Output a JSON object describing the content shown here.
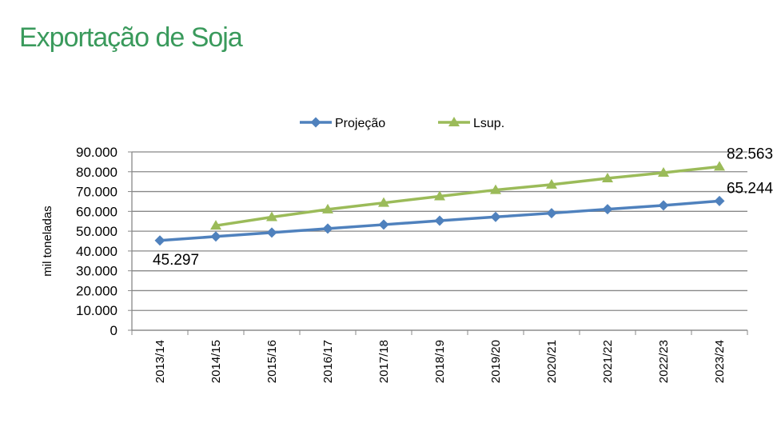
{
  "title": "Exportação de Soja",
  "chart_data": {
    "type": "line",
    "title": "",
    "xlabel": "",
    "ylabel": "mil toneladas",
    "ylim": [
      0,
      90000
    ],
    "yticks": [
      {
        "value": 0,
        "label": "0"
      },
      {
        "value": 10000,
        "label": "10.000"
      },
      {
        "value": 20000,
        "label": "20.000"
      },
      {
        "value": 30000,
        "label": "30.000"
      },
      {
        "value": 40000,
        "label": "40.000"
      },
      {
        "value": 50000,
        "label": "50.000"
      },
      {
        "value": 60000,
        "label": "60.000"
      },
      {
        "value": 70000,
        "label": "70.000"
      },
      {
        "value": 80000,
        "label": "80.000"
      },
      {
        "value": 90000,
        "label": "90.000"
      }
    ],
    "grid": true,
    "legend": "top-center",
    "categories": [
      "2013/14",
      "2014/15",
      "2015/16",
      "2016/17",
      "2017/18",
      "2018/19",
      "2019/20",
      "2020/21",
      "2021/22",
      "2022/23",
      "2023/24"
    ],
    "series": [
      {
        "name": "Projeção",
        "color": "#4f81bd",
        "marker": "diamond",
        "values": [
          45297,
          47300,
          49300,
          51300,
          53300,
          55300,
          57200,
          59100,
          61100,
          63000,
          65244
        ]
      },
      {
        "name": "Lsup.",
        "color": "#9bbb59",
        "marker": "triangle",
        "values": [
          null,
          52800,
          57100,
          61000,
          64300,
          67600,
          70800,
          73500,
          76700,
          79500,
          82563
        ]
      }
    ],
    "annotations": [
      {
        "text": "45.297",
        "series": 0,
        "index": 0,
        "position": "below"
      },
      {
        "text": "65.244",
        "series": 0,
        "index": 10,
        "position": "above"
      },
      {
        "text": "82.563",
        "series": 1,
        "index": 10,
        "position": "above"
      }
    ]
  }
}
